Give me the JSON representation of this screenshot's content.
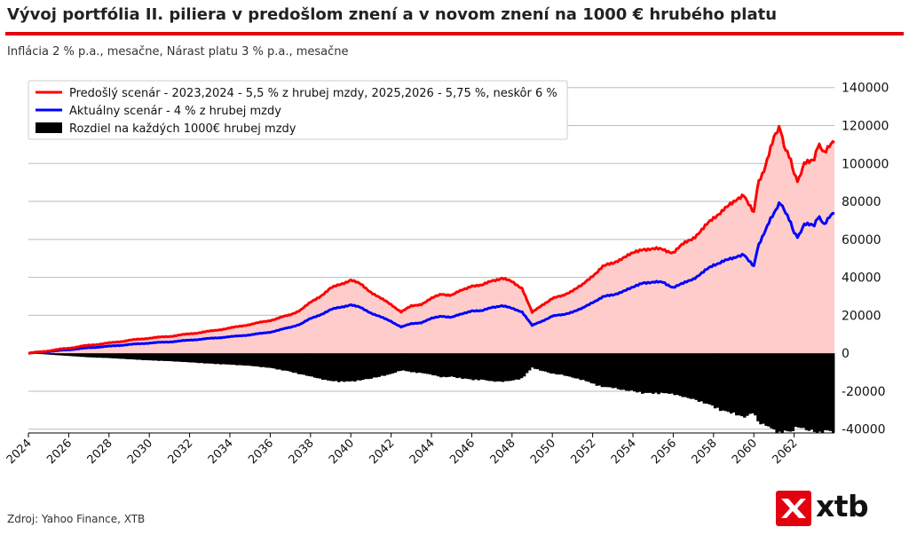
{
  "header": {
    "title": "Vývoj portfólia II. piliera v predošlom znení a v novom znení na 1000 € hrubého platu",
    "subtitle": "Inflácia 2 % p.a., mesačne, Nárast platu 3 % p.a., mesačne"
  },
  "footer": {
    "source": "Zdroj: Yahoo Finance, XTB",
    "logo_text": "xtb"
  },
  "colors": {
    "accent": "#e3000f",
    "previous": "#ff0000",
    "current": "#0000ff",
    "difference": "#000000",
    "fill": "#ffcccc",
    "grid": "#b0bec5"
  },
  "chart_data": {
    "type": "line",
    "ylim": [
      -42000,
      145000
    ],
    "xlim": [
      2024,
      2064
    ],
    "yticks": [
      140000,
      120000,
      100000,
      80000,
      60000,
      40000,
      20000,
      0,
      -20000,
      -40000
    ],
    "ytick_labels": [
      "140000",
      "120000",
      "100000",
      "80000",
      "60000",
      "40000",
      "20000",
      "0",
      "-20000",
      "-40000"
    ],
    "xticks": [
      2024,
      2026,
      2028,
      2030,
      2032,
      2034,
      2036,
      2038,
      2040,
      2042,
      2044,
      2046,
      2048,
      2050,
      2052,
      2054,
      2056,
      2058,
      2060,
      2062
    ],
    "xtick_labels": [
      "2024",
      "2026",
      "2028",
      "2030",
      "2032",
      "2034",
      "2036",
      "2038",
      "2040",
      "2042",
      "2044",
      "2046",
      "2048",
      "2050",
      "2052",
      "2054",
      "2056",
      "2058",
      "2060",
      "2062"
    ],
    "grid": "horizontal",
    "legend_position": "top-left",
    "x": [
      2024.0,
      2025.0,
      2026.0,
      2027.0,
      2028.0,
      2029.0,
      2030.0,
      2031.0,
      2032.0,
      2033.0,
      2034.0,
      2035.0,
      2036.0,
      2037.0,
      2037.5,
      2038.0,
      2038.5,
      2039.0,
      2039.5,
      2040.0,
      2040.5,
      2041.0,
      2041.5,
      2042.0,
      2042.5,
      2043.0,
      2043.5,
      2044.0,
      2044.5,
      2045.0,
      2045.5,
      2046.0,
      2046.5,
      2047.0,
      2047.5,
      2048.0,
      2048.5,
      2049.0,
      2049.5,
      2050.0,
      2050.5,
      2051.0,
      2051.5,
      2052.0,
      2052.5,
      2053.0,
      2053.5,
      2054.0,
      2054.5,
      2055.0,
      2055.5,
      2056.0,
      2056.5,
      2057.0,
      2057.5,
      2058.0,
      2058.5,
      2059.0,
      2059.5,
      2060.0,
      2060.2,
      2060.5,
      2060.8,
      2061.0,
      2061.3,
      2061.5,
      2061.8,
      2062.0,
      2062.2,
      2062.5,
      2062.8,
      2063.0,
      2063.2,
      2063.5,
      2063.8,
      2064.0
    ],
    "series": [
      {
        "name": "Predošlý scenár - 2023,2024 - 5,5 % z hrubej mzdy, 2025,2026 - 5,75 %, neskôr 6 %",
        "style": "line",
        "values": [
          0,
          1300,
          2700,
          4200,
          5400,
          6800,
          8000,
          8900,
          10200,
          11600,
          13300,
          15200,
          17300,
          20300,
          22800,
          26700,
          30200,
          34200,
          36400,
          38700,
          36200,
          32300,
          28800,
          25700,
          21800,
          24800,
          25900,
          28800,
          31300,
          30600,
          33100,
          35700,
          35600,
          38400,
          39500,
          37600,
          34400,
          21400,
          25500,
          28900,
          30200,
          33200,
          35900,
          40900,
          45700,
          47300,
          50500,
          52500,
          55100,
          54900,
          54600,
          53200,
          57400,
          61000,
          65800,
          71100,
          76200,
          79000,
          84200,
          73800,
          88500,
          96000,
          108000,
          114500,
          118500,
          108000,
          103500,
          95500,
          91000,
          99500,
          100500,
          102500,
          111500,
          106000,
          109000,
          111000
        ]
      },
      {
        "name": "Aktuálny scenár - 4 % z hrubej mzdy",
        "style": "line",
        "values": [
          0,
          900,
          1900,
          2900,
          3700,
          4600,
          5400,
          6000,
          6900,
          7800,
          8700,
          9700,
          11100,
          13700,
          15400,
          18200,
          20400,
          22900,
          24300,
          25600,
          23900,
          21300,
          19000,
          16800,
          13900,
          15500,
          16200,
          18300,
          19600,
          19000,
          20600,
          22500,
          22200,
          24300,
          25000,
          23600,
          21900,
          14600,
          17000,
          19600,
          20200,
          21900,
          23600,
          26900,
          29700,
          30600,
          32800,
          34500,
          37400,
          37300,
          37400,
          34800,
          36700,
          39400,
          42800,
          46300,
          49000,
          49700,
          52600,
          45600,
          55500,
          63000,
          71000,
          74000,
          79000,
          75000,
          70000,
          64000,
          61500,
          67500,
          67500,
          67500,
          73000,
          68000,
          72000,
          73500
        ]
      },
      {
        "name": "Rozdiel na každých 1000€ hrubej mzdy",
        "style": "bars",
        "values": [
          0,
          -700,
          -1400,
          -2100,
          -2500,
          -3100,
          -3700,
          -4100,
          -4700,
          -5400,
          -5900,
          -6500,
          -7600,
          -9600,
          -10900,
          -12000,
          -13300,
          -14400,
          -14700,
          -14700,
          -13900,
          -13100,
          -11900,
          -10800,
          -8800,
          -9800,
          -10200,
          -11100,
          -12400,
          -12200,
          -13000,
          -13800,
          -13700,
          -14500,
          -14700,
          -14200,
          -13000,
          -7500,
          -9200,
          -10600,
          -11200,
          -12600,
          -13800,
          -15800,
          -17500,
          -17800,
          -19100,
          -19600,
          -20700,
          -20800,
          -20700,
          -21100,
          -22600,
          -23800,
          -25600,
          -27700,
          -30200,
          -31100,
          -33300,
          -30500,
          -35500,
          -37000,
          -38500,
          -40000,
          -41500,
          -40500,
          -41000,
          -39000,
          -38000,
          -39500,
          -40000,
          -40500,
          -41500,
          -40000,
          -40500,
          -41000
        ]
      }
    ]
  }
}
